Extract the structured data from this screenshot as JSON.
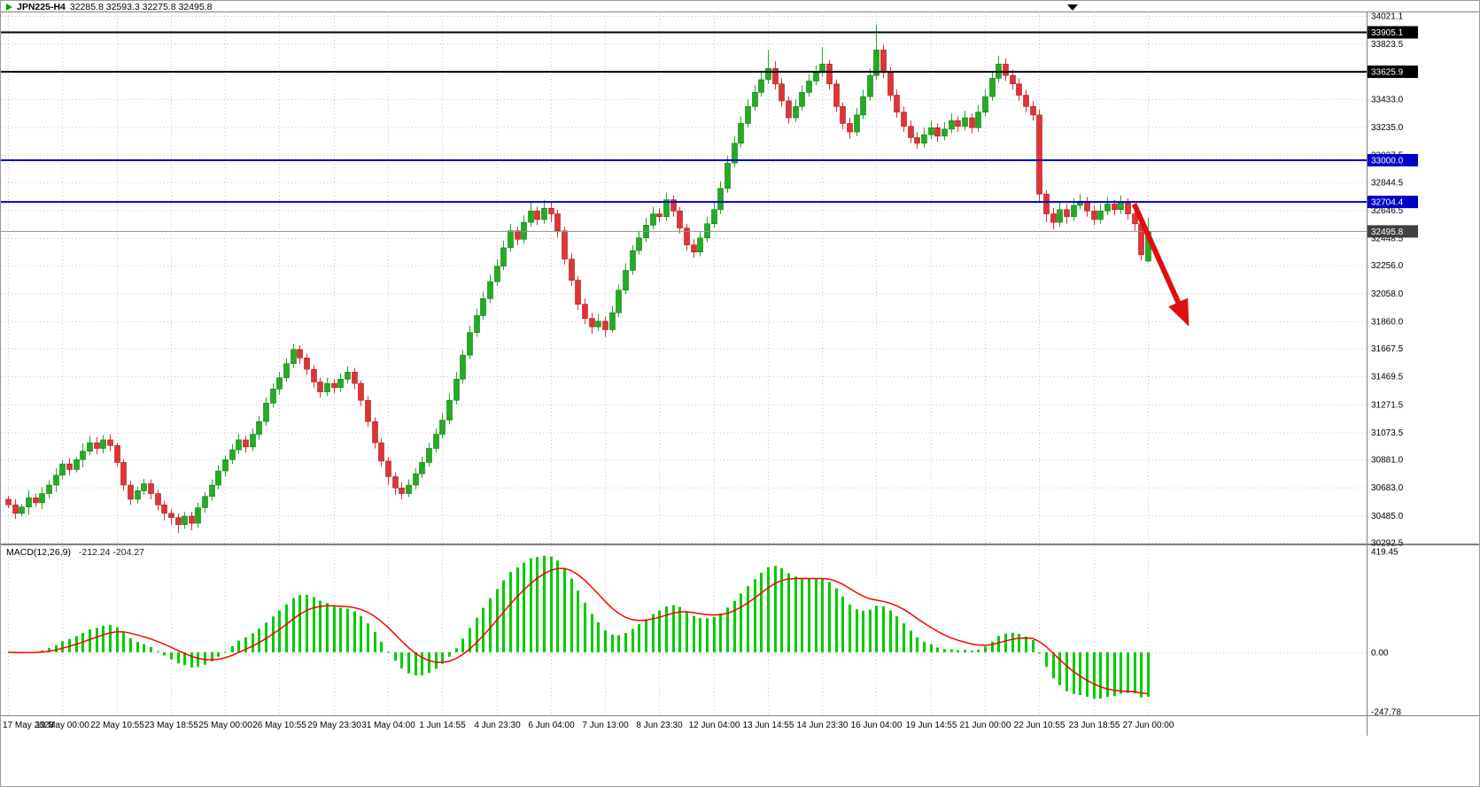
{
  "header": {
    "symbol": "JPN225-H4",
    "ohlc_text": "32285.8 32593.3 32275.8 32495.8"
  },
  "indicator": {
    "label": "MACD(12,26,9)",
    "values_text": "-212.24 -204.27"
  },
  "colors": {
    "bull": "#22AC22",
    "bull_border": "#157815",
    "bear": "#E03434",
    "bear_border": "#A32020",
    "grid": "#C6C6C6",
    "macd_hist": "#00CC00",
    "macd_signal": "#FF0000",
    "frame": "#808080",
    "badge_black": "#000000",
    "badge_blue": "#0000C8",
    "badge_current": "#404040",
    "arrow": "#E01010"
  },
  "chart_data": {
    "type": "candlestick",
    "title": "JPN225-H4",
    "symbol": "JPN225",
    "timeframe": "H4",
    "legend_position": "none",
    "grid": true,
    "price_axis": {
      "ticks": [
        "34021.1",
        "33823.5",
        "33625.5",
        "33433.0",
        "33235.0",
        "33037.5",
        "32844.5",
        "32646.5",
        "32448.5",
        "32256.0",
        "32058.0",
        "31860.0",
        "31667.5",
        "31469.5",
        "31271.5",
        "31073.5",
        "30881.0",
        "30683.0",
        "30485.0",
        "30292.5"
      ]
    },
    "macd_axis": {
      "ticks": [
        "419.45",
        "0.00",
        "-247.78"
      ]
    },
    "h_lines": [
      {
        "price": 33905.1,
        "label": "33905.1",
        "color": "#000000",
        "width": 2
      },
      {
        "price": 33625.9,
        "label": "33625.9",
        "color": "#000000",
        "width": 2
      },
      {
        "price": 33000.0,
        "label": "33000.0",
        "color": "#0000C8",
        "width": 2
      },
      {
        "price": 32704.4,
        "label": "32704.4",
        "color": "#0000C8",
        "width": 2
      },
      {
        "price": 32495.8,
        "label": "32495.8",
        "color": "#909090",
        "width": 1,
        "badge": "#404040",
        "current": true
      }
    ],
    "time_labels": [
      {
        "label": "17 May 2023",
        "index": 0
      },
      {
        "label": "19 May 00:00",
        "index": 8
      },
      {
        "label": "22 May 10:55",
        "index": 16
      },
      {
        "label": "23 May 18:55",
        "index": 24
      },
      {
        "label": "25 May 00:00",
        "index": 32
      },
      {
        "label": "26 May 10:55",
        "index": 40
      },
      {
        "label": "29 May 23:30",
        "index": 48
      },
      {
        "label": "31 May 04:00",
        "index": 56
      },
      {
        "label": "1 Jun 14:55",
        "index": 64
      },
      {
        "label": "4 Jun 23:30",
        "index": 72
      },
      {
        "label": "6 Jun 04:00",
        "index": 80
      },
      {
        "label": "7 Jun 13:00",
        "index": 88
      },
      {
        "label": "8 Jun 23:30",
        "index": 96
      },
      {
        "label": "12 Jun 04:00",
        "index": 104
      },
      {
        "label": "13 Jun 14:55",
        "index": 112
      },
      {
        "label": "14 Jun 23:30",
        "index": 120
      },
      {
        "label": "16 Jun 04:00",
        "index": 128
      },
      {
        "label": "19 Jun 14:55",
        "index": 136
      },
      {
        "label": "21 Jun 00:00",
        "index": 144
      },
      {
        "label": "22 Jun 10:55",
        "index": 152
      },
      {
        "label": "23 Jun 18:55",
        "index": 160
      },
      {
        "label": "27 Jun 00:00",
        "index": 168
      }
    ],
    "candles": [
      [
        30600,
        30625,
        30535,
        30560
      ],
      [
        30560,
        30600,
        30460,
        30500
      ],
      [
        30500,
        30565,
        30480,
        30545
      ],
      [
        30545,
        30665,
        30490,
        30610
      ],
      [
        30610,
        30640,
        30545,
        30575
      ],
      [
        30575,
        30685,
        30530,
        30640
      ],
      [
        30640,
        30735,
        30605,
        30700
      ],
      [
        30700,
        30820,
        30650,
        30770
      ],
      [
        30770,
        30875,
        30745,
        30850
      ],
      [
        30850,
        30890,
        30770,
        30810
      ],
      [
        30810,
        30900,
        30790,
        30880
      ],
      [
        30880,
        30995,
        30825,
        30940
      ],
      [
        30940,
        31050,
        30910,
        31000
      ],
      [
        31000,
        31040,
        30920,
        30960
      ],
      [
        30960,
        31055,
        30925,
        31020
      ],
      [
        31020,
        31060,
        30940,
        30980
      ],
      [
        30980,
        31000,
        30830,
        30860
      ],
      [
        30860,
        30880,
        30660,
        30700
      ],
      [
        30700,
        30730,
        30560,
        30600
      ],
      [
        30600,
        30690,
        30570,
        30660
      ],
      [
        30660,
        30745,
        30630,
        30710
      ],
      [
        30710,
        30740,
        30600,
        30640
      ],
      [
        30640,
        30670,
        30520,
        30560
      ],
      [
        30560,
        30590,
        30450,
        30500
      ],
      [
        30500,
        30530,
        30420,
        30470
      ],
      [
        30470,
        30500,
        30360,
        30420
      ],
      [
        30420,
        30510,
        30390,
        30480
      ],
      [
        30480,
        30510,
        30380,
        30430
      ],
      [
        30430,
        30575,
        30400,
        30540
      ],
      [
        30540,
        30650,
        30505,
        30620
      ],
      [
        30620,
        30740,
        30590,
        30700
      ],
      [
        30700,
        30840,
        30670,
        30800
      ],
      [
        30800,
        30910,
        30760,
        30880
      ],
      [
        30880,
        30990,
        30850,
        30950
      ],
      [
        30950,
        31060,
        30920,
        31020
      ],
      [
        31020,
        31050,
        30930,
        30970
      ],
      [
        30970,
        31100,
        30940,
        31060
      ],
      [
        31060,
        31190,
        31020,
        31150
      ],
      [
        31150,
        31320,
        31120,
        31280
      ],
      [
        31280,
        31420,
        31250,
        31380
      ],
      [
        31380,
        31500,
        31340,
        31460
      ],
      [
        31460,
        31600,
        31430,
        31560
      ],
      [
        31560,
        31700,
        31530,
        31660
      ],
      [
        31660,
        31690,
        31560,
        31600
      ],
      [
        31600,
        31630,
        31480,
        31520
      ],
      [
        31520,
        31550,
        31390,
        31430
      ],
      [
        31430,
        31460,
        31320,
        31360
      ],
      [
        31360,
        31460,
        31330,
        31420
      ],
      [
        31420,
        31450,
        31350,
        31390
      ],
      [
        31390,
        31490,
        31360,
        31450
      ],
      [
        31450,
        31540,
        31420,
        31500
      ],
      [
        31500,
        31530,
        31380,
        31420
      ],
      [
        31420,
        31440,
        31260,
        31300
      ],
      [
        31300,
        31330,
        31110,
        31150
      ],
      [
        31150,
        31180,
        30960,
        31000
      ],
      [
        31000,
        31030,
        30830,
        30870
      ],
      [
        30870,
        30900,
        30700,
        30760
      ],
      [
        30760,
        30790,
        30630,
        30680
      ],
      [
        30680,
        30720,
        30600,
        30640
      ],
      [
        30640,
        30740,
        30615,
        30700
      ],
      [
        30700,
        30820,
        30670,
        30780
      ],
      [
        30780,
        30900,
        30750,
        30860
      ],
      [
        30860,
        31000,
        30830,
        30960
      ],
      [
        30960,
        31100,
        30930,
        31060
      ],
      [
        31060,
        31210,
        31030,
        31160
      ],
      [
        31160,
        31350,
        31130,
        31300
      ],
      [
        31300,
        31500,
        31270,
        31450
      ],
      [
        31450,
        31660,
        31420,
        31620
      ],
      [
        31620,
        31830,
        31590,
        31780
      ],
      [
        31780,
        31950,
        31750,
        31900
      ],
      [
        31900,
        32070,
        31870,
        32020
      ],
      [
        32020,
        32190,
        31990,
        32140
      ],
      [
        32140,
        32300,
        32110,
        32250
      ],
      [
        32250,
        32430,
        32220,
        32380
      ],
      [
        32380,
        32550,
        32350,
        32500
      ],
      [
        32500,
        32530,
        32400,
        32440
      ],
      [
        32440,
        32610,
        32410,
        32560
      ],
      [
        32560,
        32700,
        32530,
        32640
      ],
      [
        32640,
        32670,
        32540,
        32580
      ],
      [
        32580,
        32720,
        32550,
        32660
      ],
      [
        32660,
        32700,
        32560,
        32620
      ],
      [
        32620,
        32650,
        32450,
        32500
      ],
      [
        32500,
        32530,
        32260,
        32300
      ],
      [
        32300,
        32340,
        32110,
        32150
      ],
      [
        32150,
        32180,
        31940,
        31980
      ],
      [
        31980,
        32020,
        31840,
        31880
      ],
      [
        31880,
        31920,
        31770,
        31820
      ],
      [
        31820,
        31910,
        31790,
        31860
      ],
      [
        31860,
        31890,
        31750,
        31800
      ],
      [
        31800,
        31970,
        31780,
        31920
      ],
      [
        31920,
        32120,
        31890,
        32080
      ],
      [
        32080,
        32270,
        32050,
        32220
      ],
      [
        32220,
        32400,
        32190,
        32360
      ],
      [
        32360,
        32500,
        32330,
        32450
      ],
      [
        32450,
        32590,
        32420,
        32540
      ],
      [
        32540,
        32670,
        32510,
        32620
      ],
      [
        32620,
        32660,
        32560,
        32600
      ],
      [
        32600,
        32770,
        32570,
        32720
      ],
      [
        32720,
        32750,
        32600,
        32640
      ],
      [
        32640,
        32670,
        32480,
        32520
      ],
      [
        32520,
        32550,
        32360,
        32400
      ],
      [
        32400,
        32440,
        32310,
        32350
      ],
      [
        32350,
        32500,
        32320,
        32450
      ],
      [
        32450,
        32600,
        32420,
        32550
      ],
      [
        32550,
        32700,
        32520,
        32650
      ],
      [
        32650,
        32850,
        32620,
        32800
      ],
      [
        32800,
        33030,
        32770,
        32980
      ],
      [
        32980,
        33170,
        32950,
        33120
      ],
      [
        33120,
        33310,
        33090,
        33260
      ],
      [
        33260,
        33430,
        33230,
        33380
      ],
      [
        33380,
        33530,
        33350,
        33480
      ],
      [
        33480,
        33620,
        33450,
        33570
      ],
      [
        33570,
        33780,
        33540,
        33650
      ],
      [
        33650,
        33700,
        33500,
        33540
      ],
      [
        33540,
        33580,
        33380,
        33420
      ],
      [
        33420,
        33450,
        33260,
        33300
      ],
      [
        33300,
        33430,
        33270,
        33380
      ],
      [
        33380,
        33530,
        33350,
        33480
      ],
      [
        33480,
        33610,
        33450,
        33560
      ],
      [
        33560,
        33670,
        33530,
        33620
      ],
      [
        33620,
        33800,
        33590,
        33680
      ],
      [
        33680,
        33710,
        33500,
        33540
      ],
      [
        33540,
        33570,
        33340,
        33380
      ],
      [
        33380,
        33410,
        33220,
        33260
      ],
      [
        33260,
        33300,
        33150,
        33200
      ],
      [
        33200,
        33370,
        33170,
        33320
      ],
      [
        33320,
        33500,
        33290,
        33450
      ],
      [
        33450,
        33650,
        33420,
        33600
      ],
      [
        33600,
        33960,
        33570,
        33780
      ],
      [
        33780,
        33820,
        33580,
        33620
      ],
      [
        33620,
        33660,
        33420,
        33460
      ],
      [
        33460,
        33500,
        33300,
        33340
      ],
      [
        33340,
        33380,
        33200,
        33240
      ],
      [
        33240,
        33280,
        33120,
        33160
      ],
      [
        33160,
        33200,
        33080,
        33120
      ],
      [
        33120,
        33230,
        33090,
        33180
      ],
      [
        33180,
        33280,
        33150,
        33230
      ],
      [
        33230,
        33260,
        33130,
        33170
      ],
      [
        33170,
        33270,
        33140,
        33220
      ],
      [
        33220,
        33330,
        33190,
        33280
      ],
      [
        33280,
        33310,
        33200,
        33240
      ],
      [
        33240,
        33350,
        33210,
        33300
      ],
      [
        33300,
        33330,
        33190,
        33230
      ],
      [
        33230,
        33390,
        33200,
        33340
      ],
      [
        33340,
        33500,
        33310,
        33450
      ],
      [
        33450,
        33630,
        33420,
        33580
      ],
      [
        33580,
        33740,
        33550,
        33680
      ],
      [
        33680,
        33720,
        33560,
        33600
      ],
      [
        33600,
        33640,
        33500,
        33540
      ],
      [
        33540,
        33580,
        33420,
        33460
      ],
      [
        33460,
        33500,
        33340,
        33380
      ],
      [
        33380,
        33420,
        33280,
        33320
      ],
      [
        33320,
        33360,
        32700,
        32760
      ],
      [
        32760,
        32790,
        32560,
        32620
      ],
      [
        32620,
        32660,
        32510,
        32560
      ],
      [
        32560,
        32700,
        32530,
        32650
      ],
      [
        32650,
        32690,
        32550,
        32600
      ],
      [
        32600,
        32730,
        32570,
        32680
      ],
      [
        32680,
        32760,
        32650,
        32710
      ],
      [
        32710,
        32740,
        32600,
        32640
      ],
      [
        32640,
        32680,
        32540,
        32580
      ],
      [
        32580,
        32690,
        32550,
        32640
      ],
      [
        32640,
        32740,
        32610,
        32690
      ],
      [
        32690,
        32720,
        32610,
        32650
      ],
      [
        32650,
        32750,
        32620,
        32700
      ],
      [
        32700,
        32730,
        32580,
        32620
      ],
      [
        32620,
        32650,
        32500,
        32550
      ],
      [
        32550,
        32580,
        32290,
        32330
      ],
      [
        32285.8,
        32593.3,
        32275.8,
        32495.8
      ]
    ],
    "indicator": {
      "name": "MACD",
      "fast": 12,
      "slow": 26,
      "signal": 9,
      "macd_value": -212.24,
      "signal_value": -204.27
    },
    "annotations": [
      {
        "type": "arrow",
        "from_candle": 166,
        "from_price": 32690,
        "to_candle": 172.8,
        "to_price": 31960,
        "color": "#E01010"
      }
    ]
  }
}
